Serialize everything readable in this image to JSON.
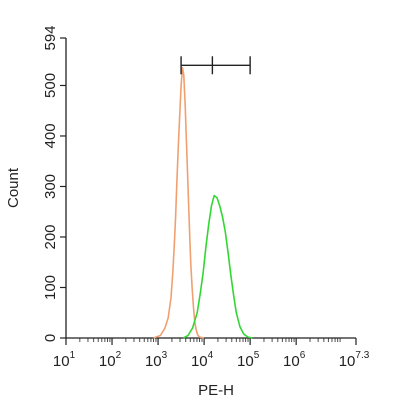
{
  "chart_data": {
    "type": "line",
    "xlabel": "PE-H",
    "ylabel": "Count",
    "xscale": "log",
    "xlim": [
      1,
      7.3
    ],
    "ylim": [
      0,
      594
    ],
    "x_tick_labels": [
      {
        "base": "10",
        "exp": "1",
        "value": 1
      },
      {
        "base": "10",
        "exp": "2",
        "value": 2
      },
      {
        "base": "10",
        "exp": "3",
        "value": 3
      },
      {
        "base": "10",
        "exp": "4",
        "value": 4
      },
      {
        "base": "10",
        "exp": "5",
        "value": 5
      },
      {
        "base": "10",
        "exp": "6",
        "value": 6
      },
      {
        "base": "10",
        "exp": "7.3",
        "value": 7.3
      }
    ],
    "y_ticks": [
      0,
      100,
      200,
      300,
      400,
      500,
      594
    ],
    "grid": false,
    "gate": {
      "x_start": 3.5,
      "x_mid": 4.18,
      "x_end": 5.0,
      "y": 540
    },
    "series": [
      {
        "color": "#f0a070",
        "x_log10": [
          2.9,
          3.05,
          3.15,
          3.22,
          3.28,
          3.32,
          3.35,
          3.38,
          3.41,
          3.44,
          3.47,
          3.5,
          3.53,
          3.56,
          3.59,
          3.62,
          3.65,
          3.68,
          3.71,
          3.74,
          3.77,
          3.8,
          3.83,
          3.86,
          3.9,
          3.95,
          4.0
        ],
        "y": [
          0,
          5,
          20,
          40,
          80,
          130,
          180,
          240,
          310,
          380,
          440,
          500,
          535,
          520,
          460,
          380,
          300,
          220,
          150,
          100,
          60,
          30,
          15,
          6,
          2,
          1,
          0
        ]
      },
      {
        "color": "#33d633",
        "x_log10": [
          3.55,
          3.65,
          3.75,
          3.85,
          3.92,
          3.98,
          4.04,
          4.1,
          4.16,
          4.22,
          4.28,
          4.34,
          4.4,
          4.46,
          4.52,
          4.58,
          4.64,
          4.7,
          4.78,
          4.86,
          4.95,
          5.05
        ],
        "y": [
          0,
          5,
          20,
          50,
          90,
          130,
          180,
          225,
          262,
          282,
          278,
          262,
          240,
          210,
          170,
          125,
          85,
          50,
          22,
          8,
          2,
          0
        ]
      }
    ]
  }
}
